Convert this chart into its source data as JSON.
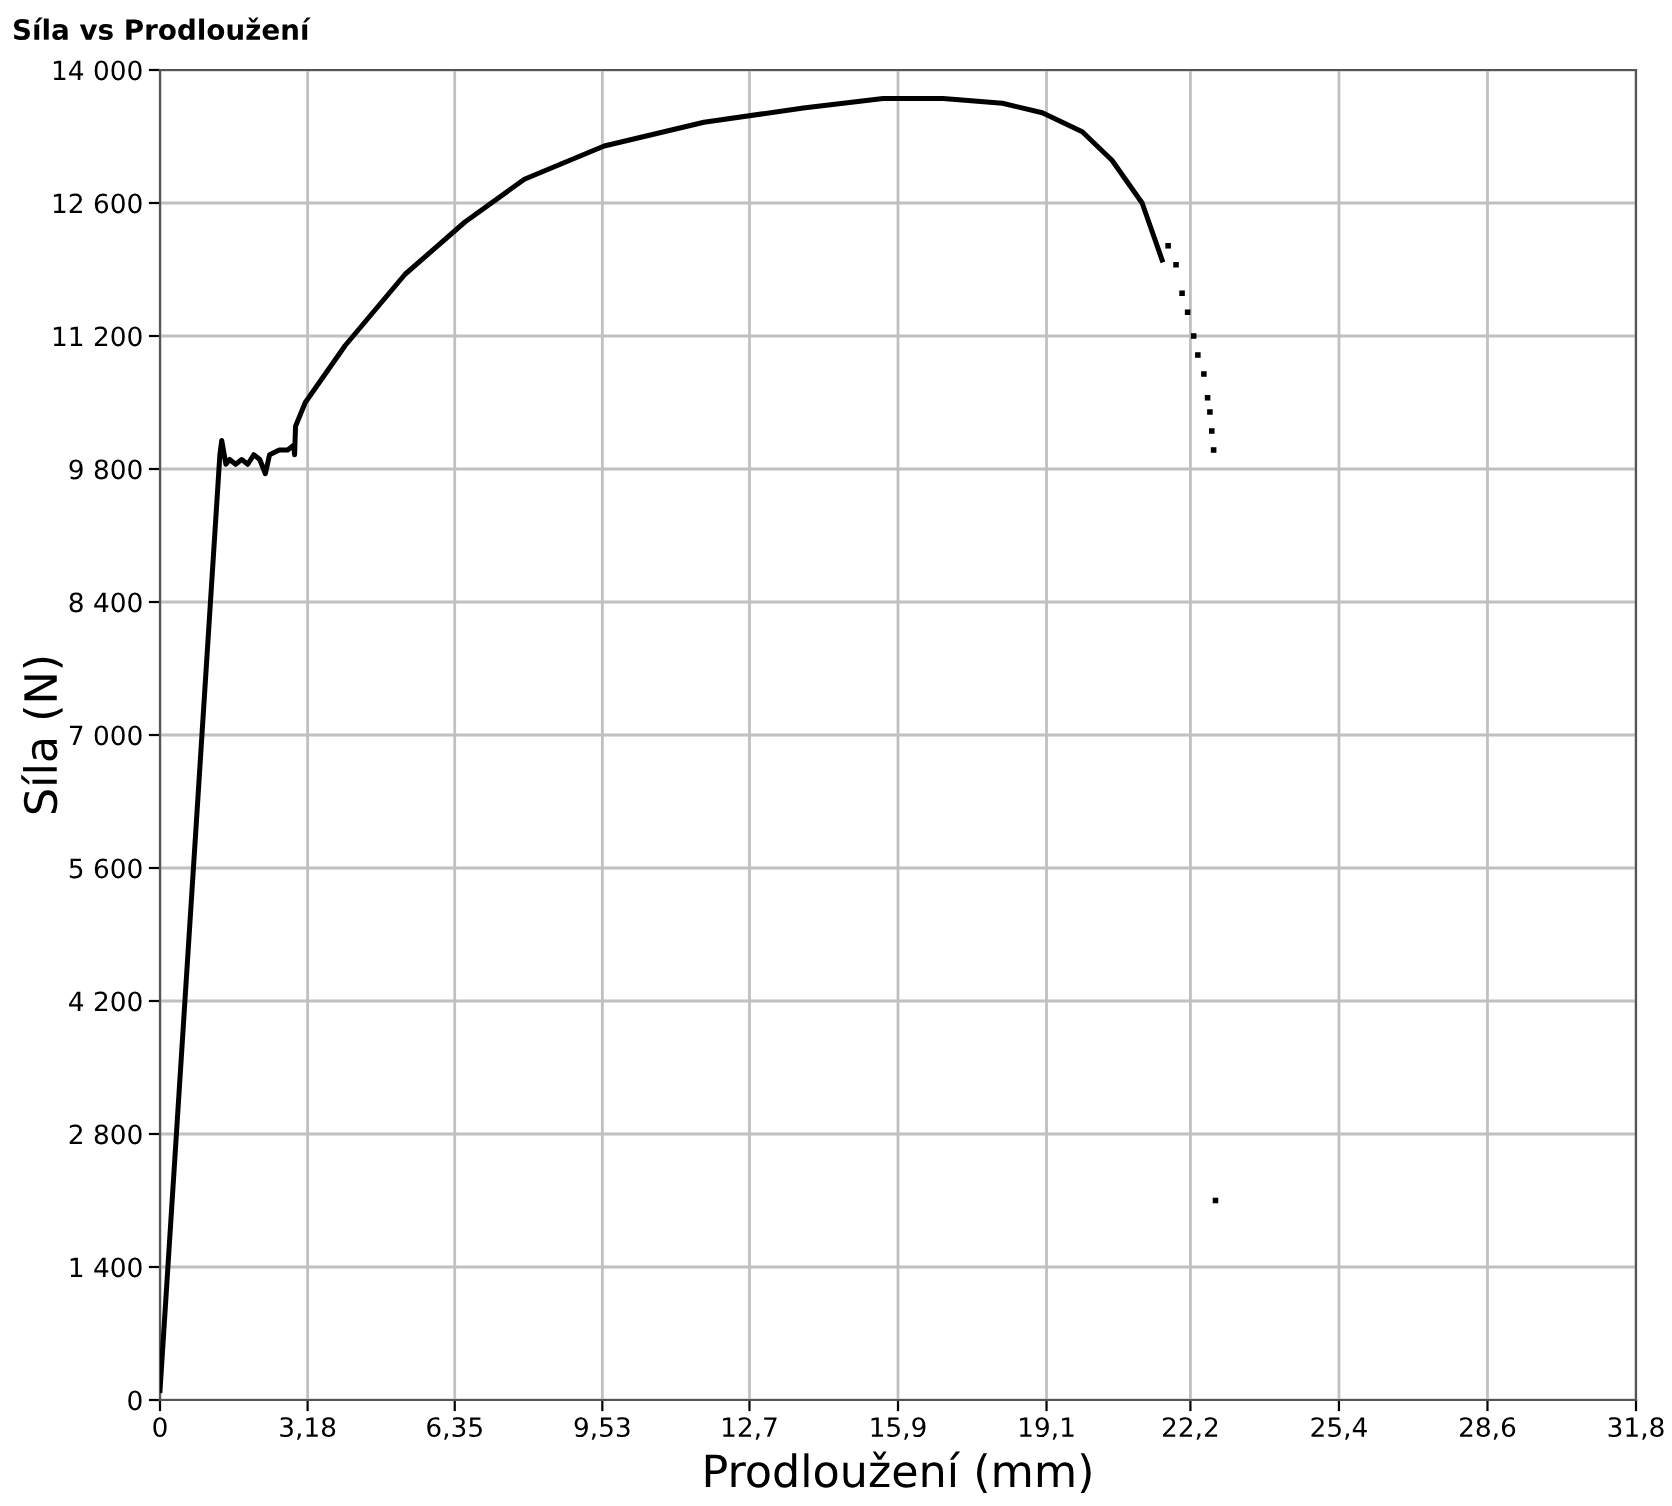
{
  "chart_data": {
    "type": "line",
    "title": "Síla vs Prodloužení",
    "xlabel": "Prodloužení (mm)",
    "ylabel": "Síla (N)",
    "xlim": [
      0,
      31.8
    ],
    "ylim": [
      0,
      14000
    ],
    "xticks": [
      0,
      {
        "value": 3.18,
        "label": "3,18"
      },
      {
        "value": 6.35,
        "label": "6,35"
      },
      {
        "value": 9.53,
        "label": "9,53"
      },
      {
        "value": 12.7,
        "label": "12,7"
      },
      {
        "value": 15.9,
        "label": "15,9"
      },
      {
        "value": 19.1,
        "label": "19,1"
      },
      {
        "value": 22.2,
        "label": "22,2"
      },
      {
        "value": 25.4,
        "label": "25,4"
      },
      {
        "value": 28.6,
        "label": "28,6"
      },
      {
        "value": 31.8,
        "label": "31,8"
      }
    ],
    "yticks": [
      0,
      {
        "value": 1400,
        "label": "1 400"
      },
      {
        "value": 2800,
        "label": "2 800"
      },
      {
        "value": 4200,
        "label": "4 200"
      },
      {
        "value": 5600,
        "label": "5 600"
      },
      {
        "value": 7000,
        "label": "7 000"
      },
      {
        "value": 8400,
        "label": "8 400"
      },
      {
        "value": 9800,
        "label": "9 800"
      },
      {
        "value": 11200,
        "label": "11 200"
      },
      {
        "value": 12600,
        "label": "12 600"
      },
      {
        "value": 14000,
        "label": "14 000"
      }
    ],
    "grid": true,
    "legend": false,
    "series": [
      {
        "color": "#000000",
        "marker": "none",
        "x": [
          0,
          1.29,
          1.33,
          1.42,
          1.5,
          1.63,
          1.76,
          1.89,
          2.02,
          2.15,
          2.27,
          2.36,
          2.57,
          2.75,
          2.88,
          2.9,
          2.92,
          3.13,
          3.99,
          5.28,
          6.57,
          7.85,
          9.57,
          11.72,
          13.86,
          15.58,
          16.87,
          18.15,
          19.01,
          19.87,
          20.51,
          21.16,
          21.59
        ],
        "values": [
          100,
          9950,
          10100,
          9850,
          9900,
          9850,
          9900,
          9850,
          9950,
          9900,
          9750,
          9950,
          10000,
          10000,
          10050,
          9950,
          10250,
          10500,
          11100,
          11850,
          12400,
          12850,
          13200,
          13450,
          13600,
          13700,
          13700,
          13650,
          13550,
          13350,
          13050,
          12600,
          12000
        ]
      },
      {
        "type": "scatter",
        "color": "#000000",
        "marker": "square",
        "x": [
          21.72,
          21.89,
          22.02,
          22.14,
          22.27,
          22.36,
          22.49,
          22.57,
          22.62,
          22.66,
          22.7,
          22.74
        ],
        "values": [
          12150,
          11950,
          11650,
          11450,
          11200,
          11000,
          10800,
          10550,
          10400,
          10200,
          10000,
          2100
        ]
      }
    ]
  }
}
